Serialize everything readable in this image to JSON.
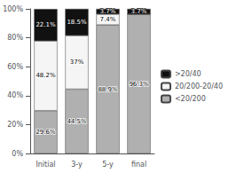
{
  "chart_data": {
    "type": "bar",
    "stacked": true,
    "categories": [
      "Initial",
      "3-y",
      "5-y",
      "final"
    ],
    "series": [
      {
        "name": "<20/200",
        "color": "#b0b0b0",
        "values": [
          29.6,
          44.5,
          88.9,
          96.3
        ],
        "value_labels": [
          "29.6%",
          "44.5%",
          "88.9%",
          "96.3%"
        ]
      },
      {
        "name": "20/200-20/40",
        "color": "#f5f5f5",
        "values": [
          48.2,
          37.0,
          7.4,
          0.0
        ],
        "value_labels": [
          "48.2%",
          "37%",
          "7.4%",
          null
        ]
      },
      {
        "name": ">20/40",
        "color": "#111111",
        "values": [
          22.1,
          18.5,
          3.7,
          3.7
        ],
        "value_labels": [
          "22.1%",
          "18.5%",
          "3.7%",
          "3.7%"
        ]
      }
    ],
    "ylim": [
      0,
      100
    ],
    "yticks": [
      {
        "value": 0,
        "label": "0%"
      },
      {
        "value": 20,
        "label": "20%"
      },
      {
        "value": 40,
        "label": "40%"
      },
      {
        "value": 60,
        "label": "60%"
      },
      {
        "value": 80,
        "label": "80%"
      },
      {
        "value": 100,
        "label": "100%"
      }
    ],
    "grid": false,
    "legend": "right",
    "data_labels": true
  }
}
